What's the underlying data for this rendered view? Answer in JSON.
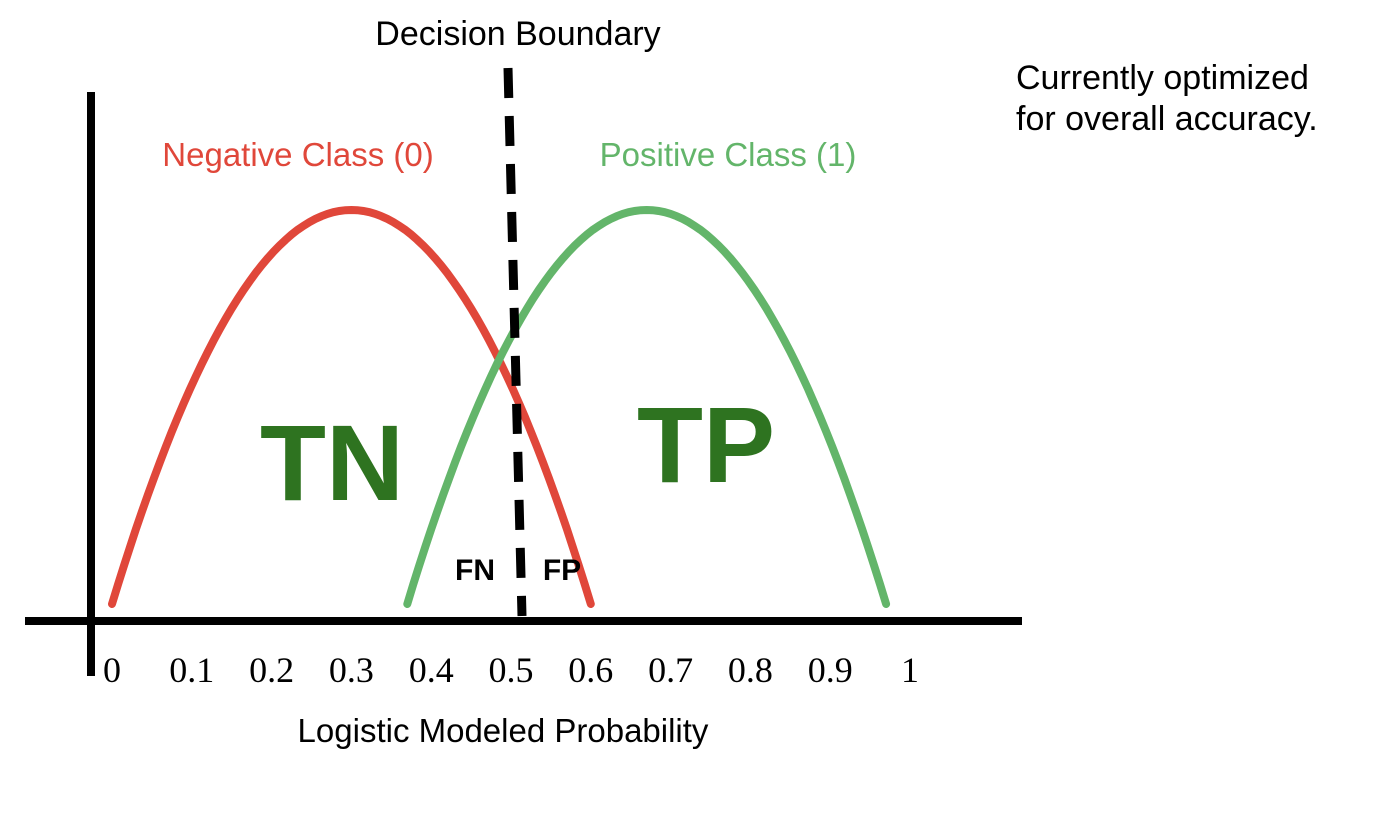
{
  "boundary_label": "Decision Boundary",
  "note_lines": [
    "Currently optimized",
    "for overall accuracy."
  ],
  "negative_label": "Negative Class (0)",
  "positive_label": "Positive Class (1)",
  "region_labels": {
    "tn": "TN",
    "tp": "TP",
    "fn": "FN",
    "fp": "FP"
  },
  "xlabel": "Logistic Modeled Probability",
  "colors": {
    "negative": "#e0473a",
    "positive": "#63b56a",
    "region_text": "#2e7320",
    "axis": "#000000"
  },
  "chart_data": {
    "type": "line",
    "x_ticks": [
      "0",
      "0.1",
      "0.2",
      "0.3",
      "0.4",
      "0.5",
      "0.6",
      "0.7",
      "0.8",
      "0.9",
      "1"
    ],
    "xlim": [
      0,
      1
    ],
    "decision_boundary": 0.5,
    "series": [
      {
        "name": "Negative Class (0)",
        "x_start": 0,
        "x_peak": 0.3,
        "x_end": 0.6
      },
      {
        "name": "Positive Class (1)",
        "x_start": 0.37,
        "x_peak": 0.67,
        "x_end": 0.97
      }
    ]
  }
}
